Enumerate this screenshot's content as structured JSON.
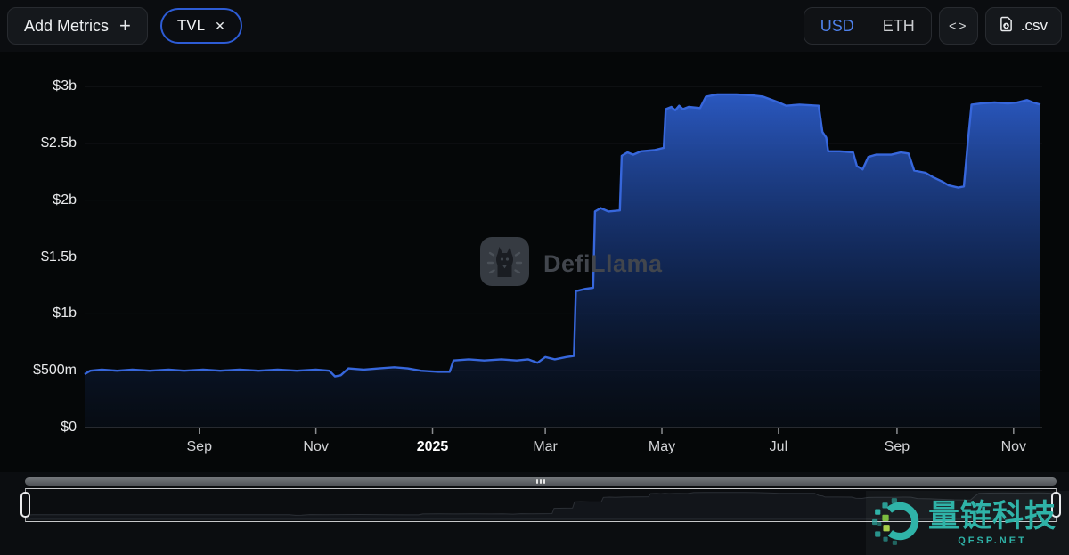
{
  "header": {
    "add_metrics": {
      "label": "Add Metrics",
      "icon": "+"
    },
    "metric_chip": {
      "label": "TVL",
      "close_icon": "✕"
    },
    "currency_toggle": {
      "options": [
        "USD",
        "ETH"
      ],
      "selected": "USD",
      "selected_color": "#4e80ea"
    },
    "embed_label": "<>",
    "csv_label": ".csv"
  },
  "brand_watermark": {
    "text": "DefiLlama"
  },
  "site_watermark": {
    "text": "量链科技",
    "subtext": "QFSP.NET",
    "color": "#2fb3a8"
  },
  "chart_data": {
    "type": "area",
    "title": "TVL",
    "currency": "USD",
    "line_color": "#3767dc",
    "grid": true,
    "legend": "none",
    "ylim_busd": [
      0,
      3
    ],
    "x_domain": [
      "2024-07-03",
      "2025-11-16"
    ],
    "y_ticks": [
      {
        "label": "$0",
        "value": 0
      },
      {
        "label": "$500m",
        "value": 0.5
      },
      {
        "label": "$1b",
        "value": 1
      },
      {
        "label": "$1.5b",
        "value": 1.5
      },
      {
        "label": "$2b",
        "value": 2
      },
      {
        "label": "$2.5b",
        "value": 2.5
      },
      {
        "label": "$3b",
        "value": 3
      }
    ],
    "x_ticks": [
      {
        "label": "Sep",
        "date": "2024-09-01",
        "bold": false
      },
      {
        "label": "Nov",
        "date": "2024-11-01",
        "bold": false
      },
      {
        "label": "2025",
        "date": "2025-01-01",
        "bold": true
      },
      {
        "label": "Mar",
        "date": "2025-03-01",
        "bold": false
      },
      {
        "label": "May",
        "date": "2025-05-01",
        "bold": false
      },
      {
        "label": "Jul",
        "date": "2025-07-01",
        "bold": false
      },
      {
        "label": "Sep",
        "date": "2025-09-01",
        "bold": false
      },
      {
        "label": "Nov",
        "date": "2025-11-01",
        "bold": false
      }
    ],
    "series": [
      {
        "name": "TVL",
        "unit": "billion USD",
        "points": [
          [
            "2024-07-03",
            0.47
          ],
          [
            "2024-07-06",
            0.5
          ],
          [
            "2024-07-12",
            0.51
          ],
          [
            "2024-07-20",
            0.5
          ],
          [
            "2024-07-28",
            0.51
          ],
          [
            "2024-08-06",
            0.5
          ],
          [
            "2024-08-16",
            0.51
          ],
          [
            "2024-08-24",
            0.5
          ],
          [
            "2024-09-03",
            0.51
          ],
          [
            "2024-09-12",
            0.5
          ],
          [
            "2024-09-22",
            0.51
          ],
          [
            "2024-10-02",
            0.5
          ],
          [
            "2024-10-12",
            0.51
          ],
          [
            "2024-10-22",
            0.5
          ],
          [
            "2024-11-01",
            0.51
          ],
          [
            "2024-11-08",
            0.5
          ],
          [
            "2024-11-11",
            0.45
          ],
          [
            "2024-11-14",
            0.46
          ],
          [
            "2024-11-18",
            0.52
          ],
          [
            "2024-11-26",
            0.51
          ],
          [
            "2024-12-04",
            0.52
          ],
          [
            "2024-12-12",
            0.53
          ],
          [
            "2024-12-19",
            0.52
          ],
          [
            "2024-12-26",
            0.5
          ],
          [
            "2025-01-04",
            0.49
          ],
          [
            "2025-01-10",
            0.49
          ],
          [
            "2025-01-12",
            0.59
          ],
          [
            "2025-01-20",
            0.6
          ],
          [
            "2025-01-28",
            0.59
          ],
          [
            "2025-02-06",
            0.6
          ],
          [
            "2025-02-14",
            0.59
          ],
          [
            "2025-02-20",
            0.6
          ],
          [
            "2025-02-25",
            0.57
          ],
          [
            "2025-03-01",
            0.62
          ],
          [
            "2025-03-06",
            0.6
          ],
          [
            "2025-03-12",
            0.62
          ],
          [
            "2025-03-16",
            0.63
          ],
          [
            "2025-03-17",
            1.2
          ],
          [
            "2025-03-22",
            1.22
          ],
          [
            "2025-03-26",
            1.23
          ],
          [
            "2025-03-27",
            1.9
          ],
          [
            "2025-03-30",
            1.93
          ],
          [
            "2025-04-03",
            1.9
          ],
          [
            "2025-04-09",
            1.91
          ],
          [
            "2025-04-10",
            2.39
          ],
          [
            "2025-04-13",
            2.42
          ],
          [
            "2025-04-16",
            2.4
          ],
          [
            "2025-04-20",
            2.43
          ],
          [
            "2025-04-27",
            2.44
          ],
          [
            "2025-05-02",
            2.46
          ],
          [
            "2025-05-03",
            2.8
          ],
          [
            "2025-05-06",
            2.82
          ],
          [
            "2025-05-08",
            2.79
          ],
          [
            "2025-05-10",
            2.83
          ],
          [
            "2025-05-12",
            2.8
          ],
          [
            "2025-05-15",
            2.82
          ],
          [
            "2025-05-21",
            2.81
          ],
          [
            "2025-05-24",
            2.91
          ],
          [
            "2025-05-30",
            2.93
          ],
          [
            "2025-06-09",
            2.93
          ],
          [
            "2025-06-18",
            2.92
          ],
          [
            "2025-06-23",
            2.91
          ],
          [
            "2025-07-01",
            2.86
          ],
          [
            "2025-07-05",
            2.83
          ],
          [
            "2025-07-12",
            2.84
          ],
          [
            "2025-07-22",
            2.83
          ],
          [
            "2025-07-24",
            2.6
          ],
          [
            "2025-07-26",
            2.55
          ],
          [
            "2025-07-27",
            2.43
          ],
          [
            "2025-08-02",
            2.43
          ],
          [
            "2025-08-09",
            2.42
          ],
          [
            "2025-08-11",
            2.3
          ],
          [
            "2025-08-14",
            2.27
          ],
          [
            "2025-08-17",
            2.38
          ],
          [
            "2025-08-21",
            2.4
          ],
          [
            "2025-08-29",
            2.4
          ],
          [
            "2025-09-03",
            2.42
          ],
          [
            "2025-09-07",
            2.41
          ],
          [
            "2025-09-10",
            2.26
          ],
          [
            "2025-09-16",
            2.24
          ],
          [
            "2025-09-20",
            2.2
          ],
          [
            "2025-09-25",
            2.16
          ],
          [
            "2025-09-28",
            2.13
          ],
          [
            "2025-10-03",
            2.11
          ],
          [
            "2025-10-06",
            2.12
          ],
          [
            "2025-10-08",
            2.5
          ],
          [
            "2025-10-10",
            2.84
          ],
          [
            "2025-10-15",
            2.85
          ],
          [
            "2025-10-22",
            2.86
          ],
          [
            "2025-10-29",
            2.85
          ],
          [
            "2025-11-03",
            2.86
          ],
          [
            "2025-11-08",
            2.88
          ],
          [
            "2025-11-11",
            2.86
          ],
          [
            "2025-11-15",
            2.84
          ]
        ]
      }
    ]
  }
}
